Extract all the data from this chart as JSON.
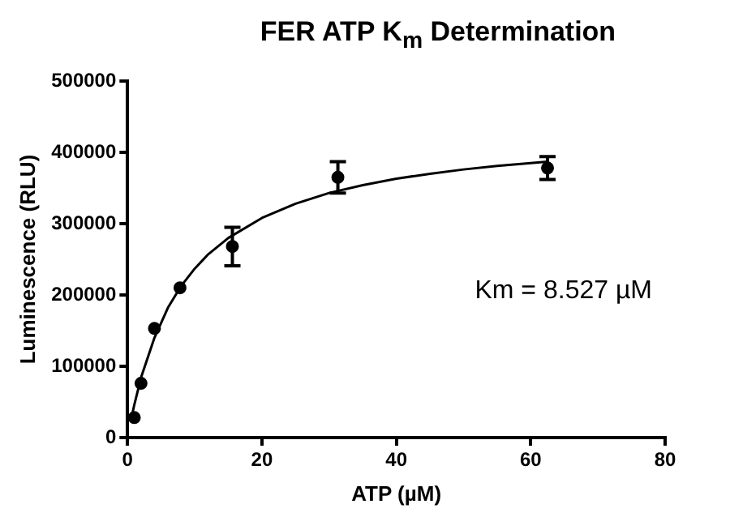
{
  "chart_data": {
    "type": "scatter",
    "title": "FER ATP K$_{m}$ Determination",
    "xlabel": "ATP (µM)",
    "ylabel": "Luminescence (RLU)",
    "xlim": [
      0,
      80
    ],
    "xticks": [
      0,
      20,
      40,
      60,
      80
    ],
    "ylim": [
      0,
      500000
    ],
    "yticks": [
      0,
      100000,
      200000,
      300000,
      400000,
      500000
    ],
    "grid": false,
    "legend": false,
    "marker": "circle",
    "annotations": [
      "Km = 8.527 µM"
    ],
    "series": [
      {
        "color": "#000000",
        "x": [
          1,
          2,
          4,
          7.8,
          15.6,
          31.3,
          62.5
        ],
        "values": [
          28000,
          76000,
          153000,
          210000,
          268000,
          365000,
          378000
        ],
        "errors": [
          null,
          null,
          null,
          null,
          [
            241000,
            295000
          ],
          [
            343000,
            387000
          ],
          [
            362000,
            394000
          ]
        ]
      },
      {
        "type": "line",
        "color": "#000000",
        "marker": "none",
        "line_style": "solid",
        "x": [
          0.5,
          1,
          2,
          4,
          6,
          8,
          10,
          12,
          15,
          20,
          25,
          30,
          35,
          40,
          45,
          50,
          55,
          62.5
        ],
        "values": [
          24000,
          46000,
          84000,
          140000,
          182000,
          213000,
          237000,
          257000,
          280000,
          308000,
          328000,
          343000,
          354000,
          363000,
          370000,
          376000,
          381000,
          387000
        ]
      }
    ]
  }
}
